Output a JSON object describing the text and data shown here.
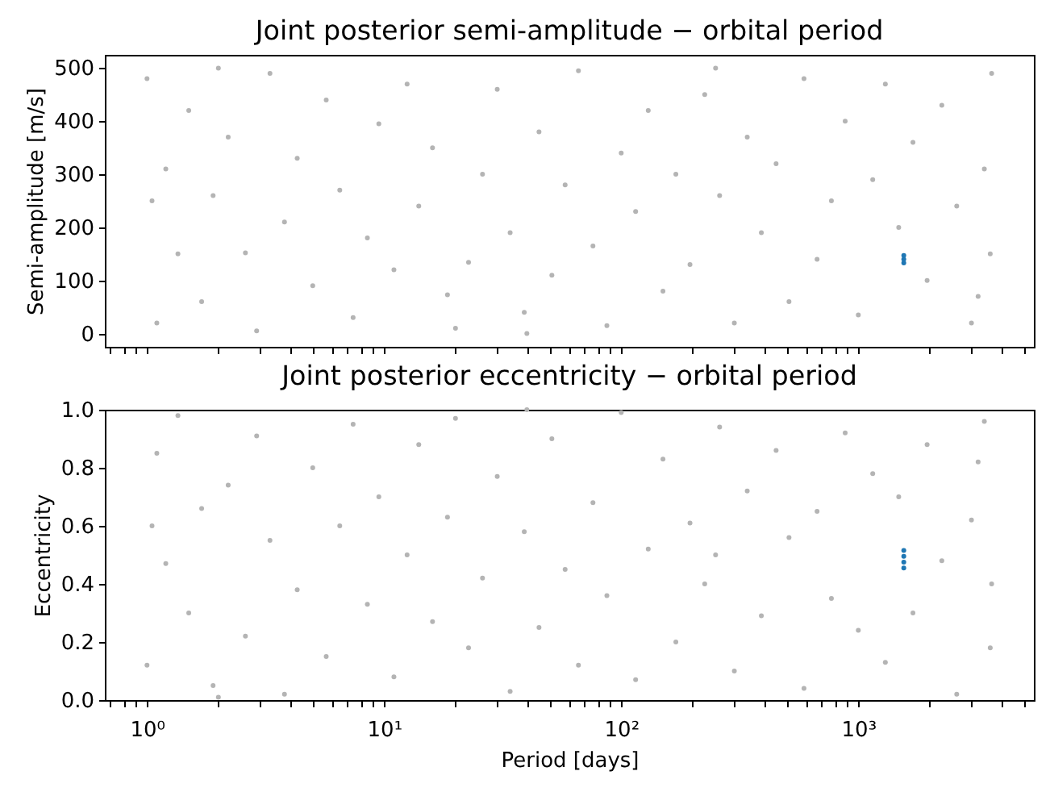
{
  "chart_data": [
    {
      "type": "scatter",
      "title": "Joint posterior semi-amplitude − orbital period",
      "ylabel": "Semi-amplitude [m/s]",
      "log": "x",
      "grid": false,
      "marker": "circle",
      "tick_labels": "y",
      "xlim": [
        0.664,
        5500
      ],
      "ylim": [
        -25,
        525
      ],
      "xticks": [
        {
          "value": 0.7,
          "label": null
        },
        {
          "value": 0.8,
          "label": null
        },
        {
          "value": 0.9,
          "label": null
        },
        {
          "value": 1,
          "label": null
        },
        {
          "value": 2,
          "label": null
        },
        {
          "value": 3,
          "label": null
        },
        {
          "value": 4,
          "label": null
        },
        {
          "value": 5,
          "label": null
        },
        {
          "value": 6,
          "label": null
        },
        {
          "value": 7,
          "label": null
        },
        {
          "value": 8,
          "label": null
        },
        {
          "value": 9,
          "label": null
        },
        {
          "value": 10,
          "label": null
        },
        {
          "value": 20,
          "label": null
        },
        {
          "value": 30,
          "label": null
        },
        {
          "value": 40,
          "label": null
        },
        {
          "value": 50,
          "label": null
        },
        {
          "value": 60,
          "label": null
        },
        {
          "value": 70,
          "label": null
        },
        {
          "value": 80,
          "label": null
        },
        {
          "value": 90,
          "label": null
        },
        {
          "value": 100,
          "label": null
        },
        {
          "value": 200,
          "label": null
        },
        {
          "value": 300,
          "label": null
        },
        {
          "value": 400,
          "label": null
        },
        {
          "value": 500,
          "label": null
        },
        {
          "value": 600,
          "label": null
        },
        {
          "value": 700,
          "label": null
        },
        {
          "value": 800,
          "label": null
        },
        {
          "value": 900,
          "label": null
        },
        {
          "value": 1000,
          "label": null
        },
        {
          "value": 2000,
          "label": null
        },
        {
          "value": 3000,
          "label": null
        },
        {
          "value": 4000,
          "label": null
        },
        {
          "value": 5000,
          "label": null
        }
      ],
      "yticks": [
        0,
        100,
        200,
        300,
        400,
        500
      ],
      "series": [
        {
          "color": "#b4b4b4",
          "x": [
            1.0,
            1.1,
            1.2,
            1.35,
            1.5,
            1.7,
            1.9,
            2.2,
            2.6,
            2.9,
            3.3,
            3.8,
            4.3,
            5,
            5.7,
            6.5,
            7.4,
            8.5,
            9.5,
            11,
            12.5,
            14,
            16,
            18.5,
            20,
            22.7,
            26,
            30,
            34,
            39,
            45,
            51,
            58,
            66,
            76,
            87,
            100,
            115,
            130,
            150,
            170,
            195,
            225,
            260,
            300,
            340,
            390,
            450,
            510,
            590,
            670,
            770,
            880,
            1000,
            1150,
            1300,
            1480,
            1700,
            1950,
            2250,
            2600,
            3000,
            3400,
            3650,
            3600,
            1.05,
            2.0,
            40,
            250,
            3200
          ],
          "values": [
            480,
            20,
            310,
            150,
            420,
            60,
            260,
            370,
            152,
            5,
            490,
            210,
            330,
            90,
            440,
            270,
            30,
            180,
            395,
            120,
            470,
            240,
            350,
            73,
            10,
            134,
            300,
            460,
            190,
            40,
            380,
            110,
            280,
            495,
            165,
            15,
            340,
            230,
            420,
            80,
            300,
            130,
            450,
            260,
            20,
            370,
            190,
            320,
            60,
            480,
            140,
            250,
            400,
            35,
            290,
            470,
            200,
            360,
            100,
            430,
            240,
            20,
            310,
            490,
            150,
            250,
            500,
            0,
            500,
            70
          ]
        },
        {
          "color": "#1f77b4",
          "x": [
            1555,
            1555,
            1555
          ],
          "values": [
            133,
            140,
            147
          ]
        }
      ]
    },
    {
      "type": "scatter",
      "title": "Joint posterior eccentricity − orbital period",
      "xlabel": "Period [days]",
      "ylabel": "Eccentricity",
      "log": "x",
      "grid": false,
      "marker": "circle",
      "xlim": [
        0.664,
        5500
      ],
      "ylim": [
        0,
        1
      ],
      "xticks": [
        {
          "value": 0.7,
          "label": null
        },
        {
          "value": 0.8,
          "label": null
        },
        {
          "value": 0.9,
          "label": null
        },
        {
          "value": 1,
          "label": "10⁰"
        },
        {
          "value": 2,
          "label": null
        },
        {
          "value": 3,
          "label": null
        },
        {
          "value": 4,
          "label": null
        },
        {
          "value": 5,
          "label": null
        },
        {
          "value": 6,
          "label": null
        },
        {
          "value": 7,
          "label": null
        },
        {
          "value": 8,
          "label": null
        },
        {
          "value": 9,
          "label": null
        },
        {
          "value": 10,
          "label": "10¹"
        },
        {
          "value": 20,
          "label": null
        },
        {
          "value": 30,
          "label": null
        },
        {
          "value": 40,
          "label": null
        },
        {
          "value": 50,
          "label": null
        },
        {
          "value": 60,
          "label": null
        },
        {
          "value": 70,
          "label": null
        },
        {
          "value": 80,
          "label": null
        },
        {
          "value": 90,
          "label": null
        },
        {
          "value": 100,
          "label": "10²"
        },
        {
          "value": 200,
          "label": null
        },
        {
          "value": 300,
          "label": null
        },
        {
          "value": 400,
          "label": null
        },
        {
          "value": 500,
          "label": null
        },
        {
          "value": 600,
          "label": null
        },
        {
          "value": 700,
          "label": null
        },
        {
          "value": 800,
          "label": null
        },
        {
          "value": 900,
          "label": null
        },
        {
          "value": 1000,
          "label": "10³"
        },
        {
          "value": 2000,
          "label": null
        },
        {
          "value": 3000,
          "label": null
        },
        {
          "value": 4000,
          "label": null
        },
        {
          "value": 5000,
          "label": null
        }
      ],
      "yticks": [
        {
          "value": 0,
          "label": "0.0"
        },
        0.2,
        0.4,
        0.6,
        0.8,
        {
          "value": 1,
          "label": "1.0"
        }
      ],
      "series": [
        {
          "color": "#b4b4b4",
          "x": [
            1.0,
            1.1,
            1.2,
            1.35,
            1.5,
            1.7,
            1.9,
            2.2,
            2.6,
            2.9,
            3.3,
            3.8,
            4.3,
            5,
            5.7,
            6.5,
            7.4,
            8.5,
            9.5,
            11,
            12.5,
            14,
            16,
            18.5,
            20,
            22.7,
            26,
            30,
            34,
            39,
            45,
            51,
            58,
            66,
            76,
            87,
            100,
            115,
            130,
            150,
            170,
            195,
            225,
            260,
            300,
            340,
            390,
            450,
            510,
            590,
            670,
            770,
            880,
            1000,
            1150,
            1300,
            1480,
            1700,
            1950,
            2250,
            2600,
            3000,
            3400,
            3650,
            3600,
            1.05,
            2.0,
            40,
            250,
            3200
          ],
          "values": [
            0.12,
            0.85,
            0.47,
            0.98,
            0.3,
            0.66,
            0.05,
            0.74,
            0.22,
            0.91,
            0.55,
            0.02,
            0.38,
            0.8,
            0.15,
            0.6,
            0.95,
            0.33,
            0.7,
            0.08,
            0.5,
            0.88,
            0.27,
            0.63,
            0.97,
            0.18,
            0.42,
            0.77,
            0.03,
            0.58,
            0.25,
            0.9,
            0.45,
            0.12,
            0.68,
            0.36,
            0.99,
            0.07,
            0.52,
            0.83,
            0.2,
            0.61,
            0.4,
            0.94,
            0.1,
            0.72,
            0.29,
            0.86,
            0.56,
            0.04,
            0.65,
            0.35,
            0.92,
            0.24,
            0.78,
            0.13,
            0.7,
            0.3,
            0.88,
            0.48,
            0.02,
            0.62,
            0.96,
            0.4,
            0.18,
            0.6,
            0.01,
            1.0,
            0.5,
            0.82
          ]
        },
        {
          "color": "#1f77b4",
          "x": [
            1555,
            1555,
            1555,
            1555
          ],
          "values": [
            0.455,
            0.475,
            0.495,
            0.515
          ]
        }
      ]
    }
  ]
}
